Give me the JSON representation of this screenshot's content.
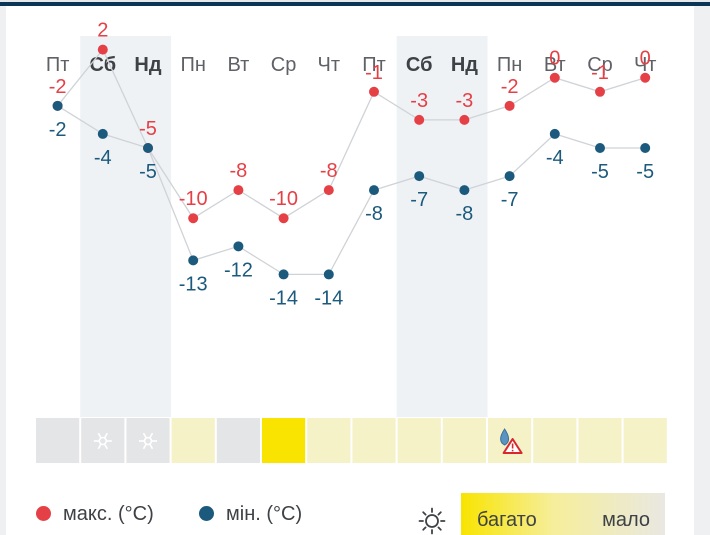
{
  "chart_data": {
    "type": "line",
    "title": "",
    "days": [
      "Пт",
      "Сб",
      "Нд",
      "Пн",
      "Вт",
      "Ср",
      "Чт",
      "Пт",
      "Сб",
      "Нд",
      "Пн",
      "Вт",
      "Ср",
      "Чт"
    ],
    "weekend": [
      false,
      true,
      true,
      false,
      false,
      false,
      false,
      false,
      true,
      true,
      false,
      false,
      false,
      false
    ],
    "series": [
      {
        "name": "макс. (°C)",
        "color": "#e64047",
        "values": [
          -2,
          2,
          -5,
          -10,
          -8,
          -10,
          -8,
          -1,
          -3,
          -3,
          -2,
          0,
          -1,
          0
        ]
      },
      {
        "name": "мін. (°C)",
        "color": "#1c5a7d",
        "values": [
          -2,
          -4,
          -5,
          -13,
          -12,
          -14,
          -14,
          -8,
          -7,
          -8,
          -7,
          -4,
          -5,
          -5
        ]
      }
    ],
    "sun_strip": [
      "gray",
      "gray",
      "gray",
      "light",
      "gray",
      "yellow",
      "light",
      "light",
      "light",
      "light",
      "light",
      "light",
      "light",
      "light"
    ],
    "icons": [
      "",
      "snowflake-icon",
      "snowflake-icon",
      "",
      "",
      "",
      "",
      "",
      "",
      "",
      "rain-warning-icon",
      "",
      "",
      ""
    ]
  },
  "legend": {
    "max_label": "макс. (°C)",
    "min_label": "мін. (°C)",
    "sun_icon": "sun-icon",
    "sun_high": "багато",
    "sun_low": "мало"
  },
  "colors": {
    "max": "#e64047",
    "min": "#1c5a7d",
    "weekend_band": "#eef2f5",
    "grid_line": "#cfd3d7",
    "sun_yellow": "#f8e400",
    "sun_light": "#f5f2c8",
    "sun_gray": "#e4e5e7"
  }
}
